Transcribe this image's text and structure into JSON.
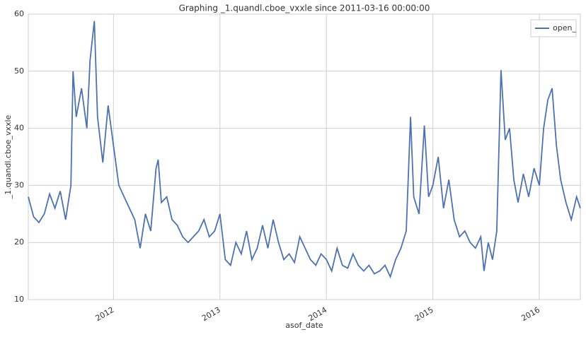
{
  "chart_data": {
    "type": "line",
    "title": "Graphing _1.quandl.cboe_vxxle since 2011-03-16 00:00:00",
    "x_label": "asof_date",
    "y_label": "_1.quandl.cboe_vxxle",
    "x": [
      2011.2,
      2011.25,
      2011.3,
      2011.35,
      2011.4,
      2011.45,
      2011.5,
      2011.55,
      2011.6,
      2011.62,
      2011.65,
      2011.7,
      2011.75,
      2011.78,
      2011.82,
      2011.85,
      2011.9,
      2011.95,
      2012.0,
      2012.05,
      2012.1,
      2012.15,
      2012.2,
      2012.25,
      2012.3,
      2012.35,
      2012.4,
      2012.42,
      2012.45,
      2012.5,
      2012.55,
      2012.6,
      2012.65,
      2012.7,
      2012.75,
      2012.8,
      2012.85,
      2012.9,
      2012.95,
      2013.0,
      2013.05,
      2013.1,
      2013.15,
      2013.2,
      2013.25,
      2013.3,
      2013.35,
      2013.4,
      2013.45,
      2013.5,
      2013.55,
      2013.6,
      2013.65,
      2013.7,
      2013.75,
      2013.8,
      2013.85,
      2013.9,
      2013.95,
      2014.0,
      2014.05,
      2014.1,
      2014.15,
      2014.2,
      2014.25,
      2014.3,
      2014.35,
      2014.4,
      2014.45,
      2014.5,
      2014.55,
      2014.6,
      2014.65,
      2014.7,
      2014.75,
      2014.79,
      2014.82,
      2014.87,
      2014.92,
      2014.96,
      2015.0,
      2015.05,
      2015.1,
      2015.15,
      2015.2,
      2015.25,
      2015.3,
      2015.35,
      2015.4,
      2015.45,
      2015.48,
      2015.52,
      2015.56,
      2015.6,
      2015.64,
      2015.68,
      2015.72,
      2015.76,
      2015.8,
      2015.85,
      2015.9,
      2015.95,
      2016.0,
      2016.04,
      2016.08,
      2016.12,
      2016.16,
      2016.2,
      2016.25,
      2016.3,
      2016.35,
      2016.385
    ],
    "series": [
      {
        "name": "open_",
        "color": "#4c72b0",
        "values": [
          28,
          24.5,
          23.5,
          25,
          28.5,
          26,
          29,
          24,
          30,
          50,
          42,
          47,
          40,
          52,
          58.8,
          42,
          34,
          44,
          37,
          30,
          28,
          26,
          24,
          19,
          25,
          22,
          33,
          34.5,
          27,
          28,
          24,
          23,
          21,
          20,
          21,
          22,
          24,
          21,
          22,
          25,
          17,
          16,
          20,
          18,
          22,
          17,
          19,
          23,
          19,
          24,
          20,
          17,
          18,
          16.5,
          21,
          19,
          17,
          16,
          18,
          17,
          15,
          19,
          16,
          15.5,
          18,
          16,
          15,
          16,
          14.5,
          15,
          16,
          14,
          17,
          19,
          22,
          42,
          28,
          25,
          40.5,
          28,
          30,
          35,
          26,
          31,
          24,
          21,
          22,
          20,
          19,
          21,
          15,
          20,
          17,
          22,
          50.2,
          38,
          40,
          31,
          27,
          32,
          28,
          33,
          30,
          40,
          45,
          47,
          37,
          31,
          27,
          24,
          28,
          26
        ]
      }
    ],
    "xlim": [
      2011.2,
      2016.385
    ],
    "xticks": [
      2012,
      2013,
      2014,
      2015,
      2016
    ],
    "ylim": [
      10,
      60
    ],
    "yticks": [
      10,
      20,
      30,
      40,
      50,
      60
    ],
    "grid": true,
    "legend_position": "upper right"
  }
}
